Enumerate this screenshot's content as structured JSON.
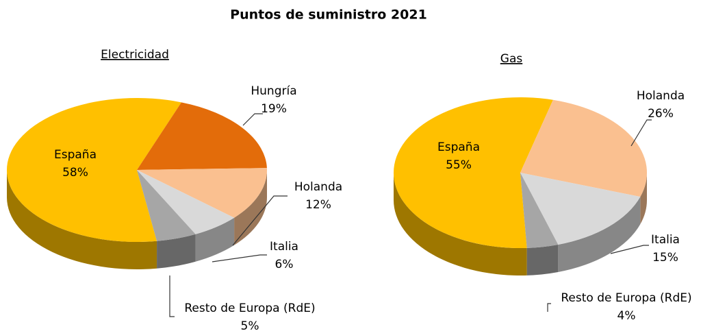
{
  "title": "Puntos de suministro 2021",
  "chart_data": [
    {
      "type": "pie",
      "title": "Electricidad",
      "categories": [
        "España",
        "Hungría",
        "Holanda",
        "Italia",
        "Resto de Europa (RdE)"
      ],
      "values": [
        58,
        19,
        12,
        6,
        5
      ],
      "value_labels": [
        "58%",
        "19%",
        "12%",
        "6%",
        "5%"
      ],
      "colors": [
        "#ffc000",
        "#e36c0a",
        "#fac090",
        "#d9d9d9",
        "#a6a6a6"
      ]
    },
    {
      "type": "pie",
      "title": "Gas",
      "categories": [
        "España",
        "Holanda",
        "Italia",
        "Resto de Europa (RdE)"
      ],
      "values": [
        55,
        26,
        15,
        4
      ],
      "value_labels": [
        "55%",
        "26%",
        "15%",
        "4%"
      ],
      "colors": [
        "#ffc000",
        "#fac090",
        "#d9d9d9",
        "#a6a6a6"
      ]
    }
  ]
}
